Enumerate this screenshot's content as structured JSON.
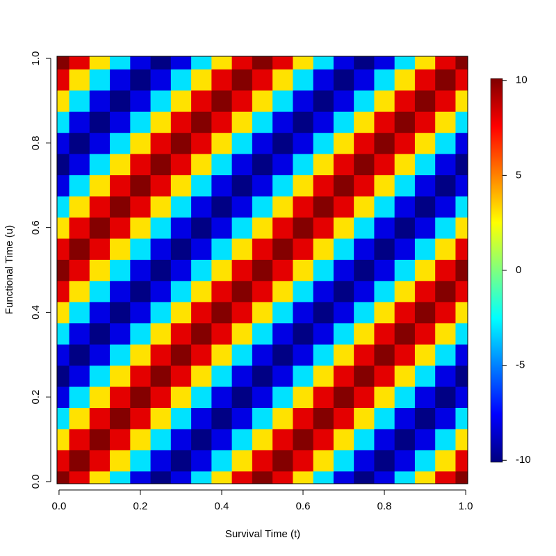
{
  "chart_data": {
    "type": "heatmap",
    "xlabel": "Survival Time (t)",
    "ylabel": "Functional Time (u)",
    "x": [
      0,
      0.05,
      0.1,
      0.15,
      0.2,
      0.25,
      0.3,
      0.35,
      0.4,
      0.45,
      0.5,
      0.55,
      0.6,
      0.65,
      0.7,
      0.75,
      0.8,
      0.85,
      0.9,
      0.95,
      1
    ],
    "y": [
      0,
      0.05,
      0.1,
      0.15,
      0.2,
      0.25,
      0.3,
      0.35,
      0.4,
      0.45,
      0.5,
      0.55,
      0.6,
      0.65,
      0.7,
      0.75,
      0.8,
      0.85,
      0.9,
      0.95,
      1
    ],
    "z": [
      [
        10,
        8.1,
        3.1,
        -3.1,
        -8.1,
        -10,
        -8.1,
        -3.1,
        3.1,
        8.1,
        10,
        8.1,
        3.1,
        -3.1,
        -8.1,
        -10,
        -8.1,
        -3.1,
        3.1,
        8.1,
        10
      ],
      [
        8.1,
        10,
        8.1,
        3.1,
        -3.1,
        -8.1,
        -10,
        -8.1,
        -3.1,
        3.1,
        8.1,
        10,
        8.1,
        3.1,
        -3.1,
        -8.1,
        -10,
        -8.1,
        -3.1,
        3.1,
        8.1
      ],
      [
        3.1,
        8.1,
        10,
        8.1,
        3.1,
        -3.1,
        -8.1,
        -10,
        -8.1,
        -3.1,
        3.1,
        8.1,
        10,
        8.1,
        3.1,
        -3.1,
        -8.1,
        -10,
        -8.1,
        -3.1,
        3.1
      ],
      [
        -3.1,
        3.1,
        8.1,
        10,
        8.1,
        3.1,
        -3.1,
        -8.1,
        -10,
        -8.1,
        -3.1,
        3.1,
        8.1,
        10,
        8.1,
        3.1,
        -3.1,
        -8.1,
        -10,
        -8.1,
        -3.1
      ],
      [
        -8.1,
        -3.1,
        3.1,
        8.1,
        10,
        8.1,
        3.1,
        -3.1,
        -8.1,
        -10,
        -8.1,
        -3.1,
        3.1,
        8.1,
        10,
        8.1,
        3.1,
        -3.1,
        -8.1,
        -10,
        -8.1
      ],
      [
        -10,
        -8.1,
        -3.1,
        3.1,
        8.1,
        10,
        8.1,
        3.1,
        -3.1,
        -8.1,
        -10,
        -8.1,
        -3.1,
        3.1,
        8.1,
        10,
        8.1,
        3.1,
        -3.1,
        -8.1,
        -10
      ],
      [
        -8.1,
        -10,
        -8.1,
        -3.1,
        3.1,
        8.1,
        10,
        8.1,
        3.1,
        -3.1,
        -8.1,
        -10,
        -8.1,
        -3.1,
        3.1,
        8.1,
        10,
        8.1,
        3.1,
        -3.1,
        -8.1
      ],
      [
        -3.1,
        -8.1,
        -10,
        -8.1,
        -3.1,
        3.1,
        8.1,
        10,
        8.1,
        3.1,
        -3.1,
        -8.1,
        -10,
        -8.1,
        -3.1,
        3.1,
        8.1,
        10,
        8.1,
        3.1,
        -3.1
      ],
      [
        3.1,
        -3.1,
        -8.1,
        -10,
        -8.1,
        -3.1,
        3.1,
        8.1,
        10,
        8.1,
        3.1,
        -3.1,
        -8.1,
        -10,
        -8.1,
        -3.1,
        3.1,
        8.1,
        10,
        8.1,
        3.1
      ],
      [
        8.1,
        3.1,
        -3.1,
        -8.1,
        -10,
        -8.1,
        -3.1,
        3.1,
        8.1,
        10,
        8.1,
        3.1,
        -3.1,
        -8.1,
        -10,
        -8.1,
        -3.1,
        3.1,
        8.1,
        10,
        8.1
      ],
      [
        10,
        8.1,
        3.1,
        -3.1,
        -8.1,
        -10,
        -8.1,
        -3.1,
        3.1,
        8.1,
        10,
        8.1,
        3.1,
        -3.1,
        -8.1,
        -10,
        -8.1,
        -3.1,
        3.1,
        8.1,
        10
      ],
      [
        8.1,
        10,
        8.1,
        3.1,
        -3.1,
        -8.1,
        -10,
        -8.1,
        -3.1,
        3.1,
        8.1,
        10,
        8.1,
        3.1,
        -3.1,
        -8.1,
        -10,
        -8.1,
        -3.1,
        3.1,
        8.1
      ],
      [
        3.1,
        8.1,
        10,
        8.1,
        3.1,
        -3.1,
        -8.1,
        -10,
        -8.1,
        -3.1,
        3.1,
        8.1,
        10,
        8.1,
        3.1,
        -3.1,
        -8.1,
        -10,
        -8.1,
        -3.1,
        3.1
      ],
      [
        -3.1,
        3.1,
        8.1,
        10,
        8.1,
        3.1,
        -3.1,
        -8.1,
        -10,
        -8.1,
        -3.1,
        3.1,
        8.1,
        10,
        8.1,
        3.1,
        -3.1,
        -8.1,
        -10,
        -8.1,
        -3.1
      ],
      [
        -8.1,
        -3.1,
        3.1,
        8.1,
        10,
        8.1,
        3.1,
        -3.1,
        -8.1,
        -10,
        -8.1,
        -3.1,
        3.1,
        8.1,
        10,
        8.1,
        3.1,
        -3.1,
        -8.1,
        -10,
        -8.1
      ],
      [
        -10,
        -8.1,
        -3.1,
        3.1,
        8.1,
        10,
        8.1,
        3.1,
        -3.1,
        -8.1,
        -10,
        -8.1,
        -3.1,
        3.1,
        8.1,
        10,
        8.1,
        3.1,
        -3.1,
        -8.1,
        -10
      ],
      [
        -8.1,
        -10,
        -8.1,
        -3.1,
        3.1,
        8.1,
        10,
        8.1,
        3.1,
        -3.1,
        -8.1,
        -10,
        -8.1,
        -3.1,
        3.1,
        8.1,
        10,
        8.1,
        3.1,
        -3.1,
        -8.1
      ],
      [
        -3.1,
        -8.1,
        -10,
        -8.1,
        -3.1,
        3.1,
        8.1,
        10,
        8.1,
        3.1,
        -3.1,
        -8.1,
        -10,
        -8.1,
        -3.1,
        3.1,
        8.1,
        10,
        8.1,
        3.1,
        -3.1
      ],
      [
        3.1,
        -3.1,
        -8.1,
        -10,
        -8.1,
        -3.1,
        3.1,
        8.1,
        10,
        8.1,
        3.1,
        -3.1,
        -8.1,
        -10,
        -8.1,
        -3.1,
        3.1,
        8.1,
        10,
        8.1,
        3.1
      ],
      [
        8.1,
        3.1,
        -3.1,
        -8.1,
        -10,
        -8.1,
        -3.1,
        3.1,
        8.1,
        10,
        8.1,
        3.1,
        -3.1,
        -8.1,
        -10,
        -8.1,
        -3.1,
        3.1,
        8.1,
        10,
        8.1
      ],
      [
        10,
        8.1,
        3.1,
        -3.1,
        -8.1,
        -10,
        -8.1,
        -3.1,
        3.1,
        8.1,
        10,
        8.1,
        3.1,
        -3.1,
        -8.1,
        -10,
        -8.1,
        -3.1,
        3.1,
        8.1,
        10
      ]
    ],
    "xlim": [
      -0.005,
      1.005
    ],
    "ylim": [
      -0.005,
      1.005
    ],
    "xticks": [
      {
        "value": 0,
        "label": "0.0"
      },
      {
        "value": 0.2,
        "label": "0.2"
      },
      {
        "value": 0.4,
        "label": "0.4"
      },
      {
        "value": 0.6,
        "label": "0.6"
      },
      {
        "value": 0.8,
        "label": "0.8"
      },
      {
        "value": 1,
        "label": "1.0"
      }
    ],
    "yticks": [
      {
        "value": 0,
        "label": "0.0"
      },
      {
        "value": 0.2,
        "label": "0.2"
      },
      {
        "value": 0.4,
        "label": "0.4"
      },
      {
        "value": 0.6,
        "label": "0.6"
      },
      {
        "value": 0.8,
        "label": "0.8"
      },
      {
        "value": 1,
        "label": "1.0"
      }
    ],
    "zlim": [
      -10.1,
      10.1
    ],
    "zticks": [
      -10,
      -5,
      0,
      5,
      10
    ],
    "colors": [
      "#00007F",
      "#0000FF",
      "#007FFF",
      "#00FFFF",
      "#7FFF7F",
      "#FFFF00",
      "#FF7F00",
      "#FF0000",
      "#7F0000"
    ]
  }
}
